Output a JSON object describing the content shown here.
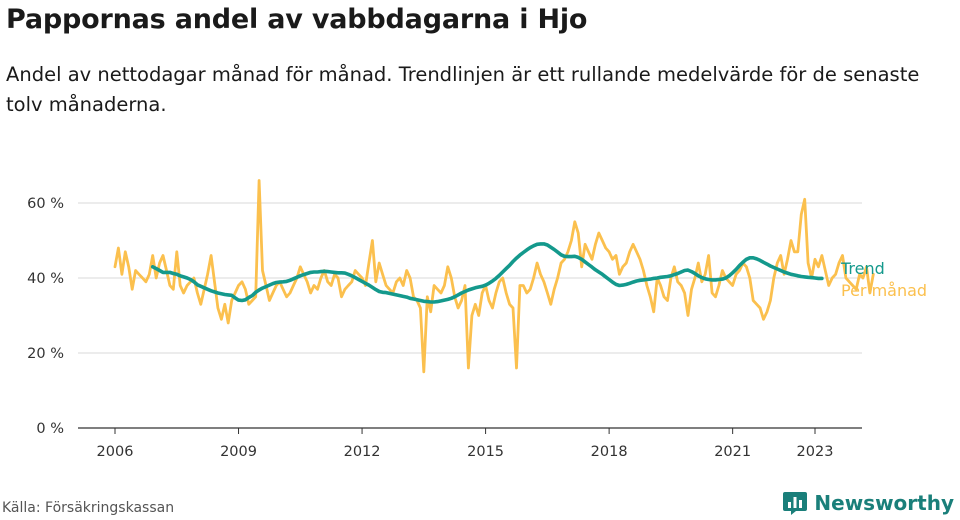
{
  "title": "Pappornas andel av vabbdagarna i Hjo",
  "subtitle": "Andel av nettodagar månad för månad. Trendlinjen är ett rullande medelvärde för de senaste tolv månaderna.",
  "source": "Källa: Försäkringskassan",
  "brand": {
    "name": "Newsworthy",
    "icon": "newsworthy-logo-icon"
  },
  "colors": {
    "trend": "#14998c",
    "monthly": "#fbc04e",
    "grid": "#d9d9d9",
    "axis": "#333333"
  },
  "chart_data": {
    "type": "line",
    "title": "",
    "xlabel": "",
    "ylabel": "",
    "ylim": [
      0,
      70
    ],
    "yticks": [
      0,
      20,
      40,
      60
    ],
    "ytick_labels": [
      "0 %",
      "20 %",
      "40 %",
      "60 %"
    ],
    "xticks": [
      2006,
      2009,
      2012,
      2015,
      2018,
      2021,
      2023
    ],
    "xtick_labels": [
      "2006",
      "2009",
      "2012",
      "2015",
      "2018",
      "2021",
      "2023"
    ],
    "grid": true,
    "legend": "direct labels at line ends (right)",
    "series": [
      {
        "name": "Per månad",
        "color": "#fbc04e",
        "x_start": "2006-01",
        "frequency": "monthly",
        "values": [
          43,
          48,
          41,
          47,
          43,
          37,
          42,
          41,
          40,
          39,
          41,
          46,
          40,
          44,
          46,
          42,
          38,
          37,
          47,
          38,
          36,
          38,
          39,
          40,
          36,
          33,
          37,
          41,
          46,
          39,
          32,
          29,
          33,
          28,
          34,
          36,
          38,
          39,
          37,
          33,
          34,
          35,
          66,
          42,
          38,
          34,
          36,
          38,
          39,
          37,
          35,
          36,
          38,
          40,
          43,
          41,
          39,
          36,
          38,
          37,
          40,
          42,
          39,
          38,
          41,
          40,
          35,
          37,
          38,
          39,
          42,
          41,
          40,
          38,
          44,
          50,
          39,
          44,
          41,
          38,
          37,
          36,
          39,
          40,
          38,
          42,
          40,
          35,
          34,
          32,
          15,
          35,
          31,
          38,
          37,
          36,
          38,
          43,
          40,
          35,
          32,
          34,
          38,
          16,
          30,
          33,
          30,
          36,
          38,
          34,
          32,
          36,
          39,
          40,
          36,
          33,
          32,
          16,
          38,
          38,
          36,
          37,
          40,
          44,
          41,
          39,
          36,
          33,
          37,
          40,
          44,
          45,
          47,
          50,
          55,
          52,
          43,
          49,
          47,
          45,
          49,
          52,
          50,
          48,
          47,
          45,
          46,
          41,
          43,
          44,
          47,
          49,
          47,
          45,
          42,
          38,
          35,
          31,
          40,
          38,
          35,
          34,
          40,
          43,
          39,
          38,
          36,
          30,
          37,
          40,
          44,
          39,
          41,
          46,
          36,
          35,
          38,
          42,
          40,
          39,
          38,
          41,
          42,
          44,
          43,
          40,
          34,
          33,
          32,
          29,
          31,
          34,
          40,
          44,
          46,
          41,
          45,
          50,
          47,
          47,
          57,
          61,
          44,
          40,
          45,
          43,
          46,
          42,
          38,
          40,
          41,
          44,
          46,
          40,
          39,
          38,
          37,
          41,
          40,
          43,
          36,
          41
        ]
      },
      {
        "name": "Trend",
        "color": "#14998c",
        "x_start": "2006-12",
        "frequency": "monthly",
        "values": [
          43,
          42.5,
          42,
          41.5,
          41.5,
          41.5,
          41.2,
          41,
          40.6,
          40.3,
          40,
          39.6,
          39,
          38.2,
          37.8,
          37.4,
          37,
          36.6,
          36.3,
          36,
          35.8,
          35.6,
          35.5,
          35.4,
          34.7,
          34.1,
          34,
          34.2,
          34.8,
          35.3,
          36.2,
          36.8,
          37.3,
          37.7,
          38.1,
          38.5,
          38.8,
          38.9,
          39,
          39.1,
          39.4,
          39.8,
          40.2,
          40.6,
          40.9,
          41.2,
          41.5,
          41.6,
          41.6,
          41.7,
          41.8,
          41.7,
          41.6,
          41.5,
          41.4,
          41.4,
          41.3,
          41,
          40.6,
          40.1,
          39.6,
          39.1,
          38.6,
          38.1,
          37.5,
          36.9,
          36.4,
          36.2,
          36.1,
          35.9,
          35.7,
          35.5,
          35.3,
          35.1,
          34.9,
          34.6,
          34.4,
          34.2,
          34,
          33.8,
          33.7,
          33.6,
          33.6,
          33.7,
          33.9,
          34.1,
          34.3,
          34.6,
          35,
          35.5,
          36,
          36.4,
          36.8,
          37.1,
          37.4,
          37.6,
          37.8,
          38.1,
          38.6,
          39.2,
          39.9,
          40.7,
          41.6,
          42.5,
          43.4,
          44.4,
          45.3,
          46.1,
          46.8,
          47.5,
          48.1,
          48.6,
          49,
          49.1,
          49.1,
          48.8,
          48.2,
          47.6,
          46.9,
          46.2,
          45.8,
          45.7,
          45.7,
          45.8,
          45.5,
          45,
          44.3,
          43.6,
          42.9,
          42.2,
          41.6,
          41,
          40.3,
          39.6,
          38.9,
          38.3,
          38,
          38.1,
          38.3,
          38.6,
          38.9,
          39.2,
          39.4,
          39.5,
          39.6,
          39.7,
          39.9,
          40,
          40.2,
          40.3,
          40.4,
          40.6,
          40.9,
          41.2,
          41.6,
          42,
          42.1,
          41.7,
          41.2,
          40.6,
          40.1,
          39.8,
          39.6,
          39.5,
          39.5,
          39.6,
          39.7,
          40,
          40.6,
          41.4,
          42.3,
          43.3,
          44.2,
          45,
          45.4,
          45.4,
          45.1,
          44.7,
          44.2,
          43.7,
          43.2,
          42.8,
          42.4,
          42,
          41.6,
          41.3,
          41,
          40.8,
          40.6,
          40.4,
          40.3,
          40.2,
          40.1,
          40,
          39.9,
          39.9
        ]
      }
    ]
  }
}
